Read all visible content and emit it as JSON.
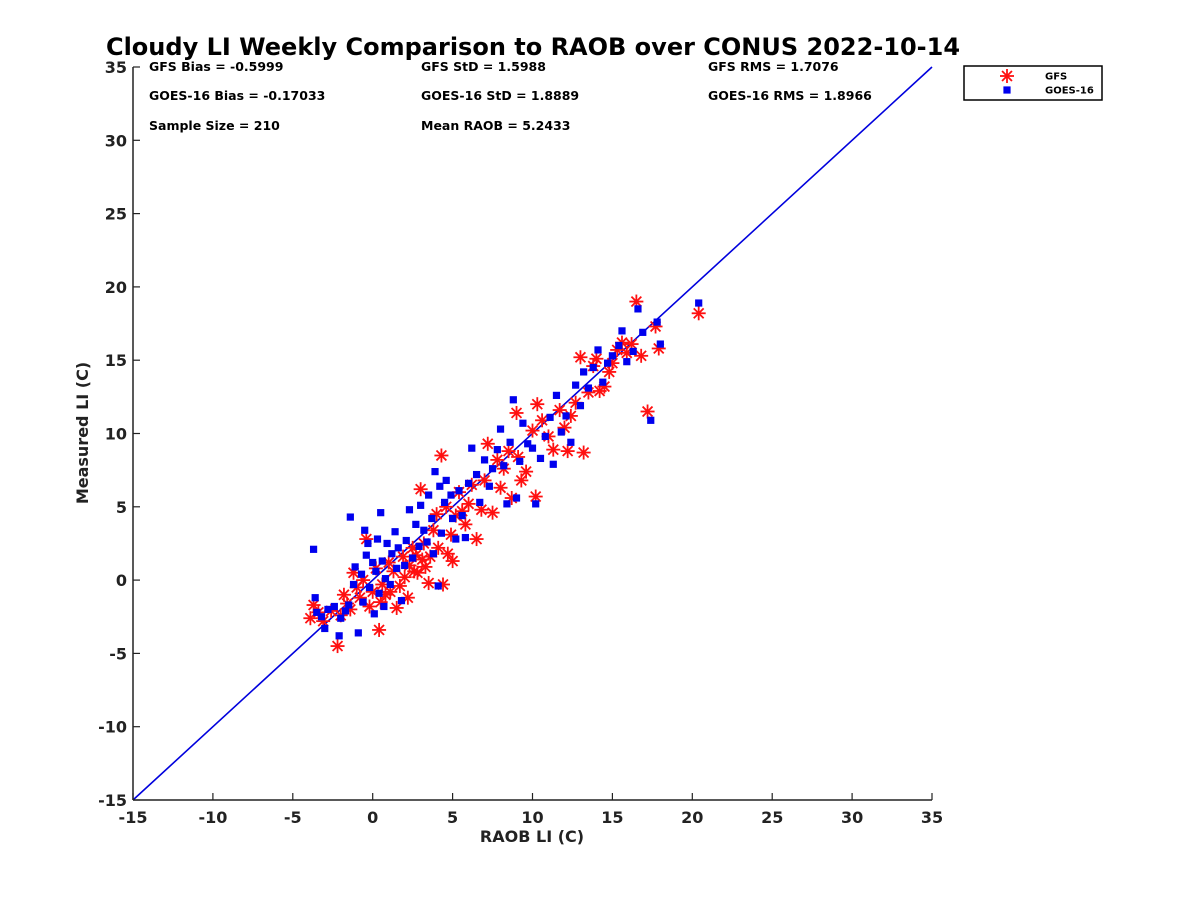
{
  "chart_data": {
    "type": "scatter",
    "title": "Cloudy LI Weekly Comparison to RAOB over CONUS 2022-10-14",
    "xlabel": "RAOB LI (C)",
    "ylabel": "Measured LI (C)",
    "xlim": [
      -15,
      35
    ],
    "ylim": [
      -15,
      35
    ],
    "xticks": [
      -15,
      -10,
      -5,
      0,
      5,
      10,
      15,
      20,
      25,
      30,
      35
    ],
    "yticks": [
      -15,
      -10,
      -5,
      0,
      5,
      10,
      15,
      20,
      25,
      30,
      35
    ],
    "grid": false,
    "legend_position": "top-right, outside axes",
    "reference_line": {
      "type": "one-to-one",
      "color": "#0000dd"
    },
    "stats": [
      [
        "GFS Bias = -0.5999",
        "GFS StD = 1.5988",
        "GFS RMS = 1.7076"
      ],
      [
        "GOES-16 Bias = -0.17033",
        "GOES-16 StD = 1.8889",
        "GOES-16 RMS = 1.8966"
      ],
      [
        "Sample Size = 210",
        "Mean RAOB = 5.2433",
        ""
      ]
    ],
    "series": [
      {
        "name": "GFS",
        "marker": "asterisk",
        "color": "#ff1010",
        "points": [
          [
            -3.9,
            -2.6
          ],
          [
            -3.7,
            -1.7
          ],
          [
            -3.4,
            -2.2
          ],
          [
            -3.1,
            -2.8
          ],
          [
            -2.6,
            -2.1
          ],
          [
            -2.2,
            -4.5
          ],
          [
            -2.0,
            -2.4
          ],
          [
            -1.8,
            -1.0
          ],
          [
            -1.6,
            -1.6
          ],
          [
            -1.4,
            -2.0
          ],
          [
            -1.2,
            0.5
          ],
          [
            -1.0,
            -0.5
          ],
          [
            -0.8,
            -1.2
          ],
          [
            -0.6,
            0.0
          ],
          [
            -0.4,
            2.8
          ],
          [
            -0.2,
            -1.8
          ],
          [
            0.0,
            -0.8
          ],
          [
            0.2,
            0.8
          ],
          [
            0.4,
            -3.4
          ],
          [
            0.5,
            -1.5
          ],
          [
            0.6,
            -0.3
          ],
          [
            0.8,
            -1.0
          ],
          [
            1.0,
            1.2
          ],
          [
            1.1,
            -0.8
          ],
          [
            1.3,
            0.6
          ],
          [
            1.5,
            -1.9
          ],
          [
            1.7,
            -0.4
          ],
          [
            1.9,
            1.6
          ],
          [
            2.0,
            0.2
          ],
          [
            2.2,
            -1.2
          ],
          [
            2.3,
            1.0
          ],
          [
            2.5,
            2.2
          ],
          [
            2.6,
            0.6
          ],
          [
            2.7,
            1.7
          ],
          [
            2.8,
            0.5
          ],
          [
            3.0,
            6.2
          ],
          [
            3.1,
            1.4
          ],
          [
            3.2,
            2.5
          ],
          [
            3.3,
            0.9
          ],
          [
            3.5,
            -0.2
          ],
          [
            3.6,
            1.6
          ],
          [
            3.8,
            3.4
          ],
          [
            4.0,
            4.5
          ],
          [
            4.1,
            2.2
          ],
          [
            4.3,
            8.5
          ],
          [
            4.4,
            -0.3
          ],
          [
            4.6,
            5.0
          ],
          [
            4.7,
            1.8
          ],
          [
            4.9,
            3.1
          ],
          [
            5.0,
            1.3
          ],
          [
            5.2,
            4.4
          ],
          [
            5.4,
            6.0
          ],
          [
            5.6,
            4.7
          ],
          [
            5.8,
            3.8
          ],
          [
            6.0,
            5.2
          ],
          [
            6.2,
            6.5
          ],
          [
            6.5,
            2.8
          ],
          [
            6.8,
            4.8
          ],
          [
            7.0,
            6.8
          ],
          [
            7.2,
            9.3
          ],
          [
            7.5,
            4.6
          ],
          [
            7.8,
            8.2
          ],
          [
            8.0,
            6.3
          ],
          [
            8.2,
            7.6
          ],
          [
            8.5,
            8.8
          ],
          [
            8.7,
            5.6
          ],
          [
            9.0,
            11.4
          ],
          [
            9.1,
            8.4
          ],
          [
            9.3,
            6.8
          ],
          [
            9.6,
            7.4
          ],
          [
            10.0,
            10.2
          ],
          [
            10.2,
            5.7
          ],
          [
            10.3,
            12.0
          ],
          [
            10.6,
            10.9
          ],
          [
            11.0,
            9.8
          ],
          [
            11.3,
            8.9
          ],
          [
            11.7,
            11.6
          ],
          [
            12.0,
            10.4
          ],
          [
            12.2,
            8.8
          ],
          [
            12.4,
            11.2
          ],
          [
            12.7,
            12.1
          ],
          [
            13.0,
            15.2
          ],
          [
            13.2,
            8.7
          ],
          [
            13.5,
            12.8
          ],
          [
            13.8,
            14.6
          ],
          [
            14.0,
            15.1
          ],
          [
            14.2,
            12.9
          ],
          [
            14.5,
            13.2
          ],
          [
            14.8,
            14.2
          ],
          [
            15.0,
            14.8
          ],
          [
            15.3,
            15.7
          ],
          [
            15.6,
            16.2
          ],
          [
            15.9,
            15.5
          ],
          [
            16.2,
            16.1
          ],
          [
            16.5,
            19.0
          ],
          [
            16.8,
            15.3
          ],
          [
            17.2,
            11.5
          ],
          [
            17.7,
            17.3
          ],
          [
            17.9,
            15.8
          ],
          [
            20.4,
            18.2
          ]
        ]
      },
      {
        "name": "GOES-16",
        "marker": "square",
        "color": "#0000ee",
        "points": [
          [
            -3.7,
            2.1
          ],
          [
            -3.6,
            -1.2
          ],
          [
            -3.5,
            -2.2
          ],
          [
            -3.2,
            -2.5
          ],
          [
            -3.0,
            -3.3
          ],
          [
            -2.8,
            -2.0
          ],
          [
            -2.4,
            -1.8
          ],
          [
            -2.1,
            -3.8
          ],
          [
            -2.0,
            -2.6
          ],
          [
            -1.7,
            -2.1
          ],
          [
            -1.5,
            -1.7
          ],
          [
            -1.4,
            4.3
          ],
          [
            -1.2,
            -0.3
          ],
          [
            -1.1,
            0.9
          ],
          [
            -0.9,
            -3.6
          ],
          [
            -0.7,
            0.4
          ],
          [
            -0.6,
            -1.5
          ],
          [
            -0.5,
            3.4
          ],
          [
            -0.4,
            1.7
          ],
          [
            -0.3,
            2.5
          ],
          [
            -0.2,
            -0.5
          ],
          [
            0.0,
            1.2
          ],
          [
            0.1,
            -2.3
          ],
          [
            0.2,
            0.6
          ],
          [
            0.3,
            2.8
          ],
          [
            0.4,
            -0.9
          ],
          [
            0.5,
            4.6
          ],
          [
            0.6,
            1.3
          ],
          [
            0.7,
            -1.8
          ],
          [
            0.8,
            0.1
          ],
          [
            0.9,
            2.5
          ],
          [
            1.1,
            -0.3
          ],
          [
            1.2,
            1.8
          ],
          [
            1.4,
            3.3
          ],
          [
            1.5,
            0.8
          ],
          [
            1.6,
            2.2
          ],
          [
            1.8,
            -1.4
          ],
          [
            2.0,
            1.0
          ],
          [
            2.1,
            2.7
          ],
          [
            2.3,
            4.8
          ],
          [
            2.5,
            1.5
          ],
          [
            2.7,
            3.8
          ],
          [
            2.9,
            2.3
          ],
          [
            3.0,
            5.1
          ],
          [
            3.2,
            3.4
          ],
          [
            3.4,
            2.6
          ],
          [
            3.5,
            5.8
          ],
          [
            3.7,
            4.2
          ],
          [
            3.8,
            1.8
          ],
          [
            3.9,
            7.4
          ],
          [
            4.1,
            -0.4
          ],
          [
            4.2,
            6.4
          ],
          [
            4.3,
            3.2
          ],
          [
            4.5,
            5.3
          ],
          [
            4.6,
            6.8
          ],
          [
            4.9,
            5.8
          ],
          [
            5.0,
            4.2
          ],
          [
            5.2,
            2.8
          ],
          [
            5.4,
            6.1
          ],
          [
            5.6,
            4.4
          ],
          [
            5.8,
            2.9
          ],
          [
            6.0,
            6.6
          ],
          [
            6.2,
            9.0
          ],
          [
            6.5,
            7.2
          ],
          [
            6.7,
            5.3
          ],
          [
            7.0,
            8.2
          ],
          [
            7.3,
            6.4
          ],
          [
            7.5,
            7.6
          ],
          [
            7.8,
            8.9
          ],
          [
            8.0,
            10.3
          ],
          [
            8.2,
            7.8
          ],
          [
            8.4,
            5.2
          ],
          [
            8.6,
            9.4
          ],
          [
            8.8,
            12.3
          ],
          [
            9.0,
            5.6
          ],
          [
            9.2,
            8.1
          ],
          [
            9.4,
            10.7
          ],
          [
            9.7,
            9.3
          ],
          [
            10.0,
            9.0
          ],
          [
            10.2,
            5.2
          ],
          [
            10.5,
            8.3
          ],
          [
            10.8,
            9.8
          ],
          [
            11.1,
            11.1
          ],
          [
            11.3,
            7.9
          ],
          [
            11.5,
            12.6
          ],
          [
            11.8,
            10.1
          ],
          [
            12.1,
            11.2
          ],
          [
            12.4,
            9.4
          ],
          [
            12.7,
            13.3
          ],
          [
            13.0,
            11.9
          ],
          [
            13.2,
            14.2
          ],
          [
            13.5,
            13.1
          ],
          [
            13.8,
            14.5
          ],
          [
            14.1,
            15.7
          ],
          [
            14.4,
            13.5
          ],
          [
            14.7,
            14.8
          ],
          [
            15.0,
            15.3
          ],
          [
            15.4,
            16.0
          ],
          [
            15.6,
            17.0
          ],
          [
            15.9,
            14.9
          ],
          [
            16.3,
            15.6
          ],
          [
            16.6,
            18.5
          ],
          [
            16.9,
            16.9
          ],
          [
            17.4,
            10.9
          ],
          [
            17.8,
            17.6
          ],
          [
            18.0,
            16.1
          ],
          [
            20.4,
            18.9
          ]
        ]
      }
    ]
  }
}
